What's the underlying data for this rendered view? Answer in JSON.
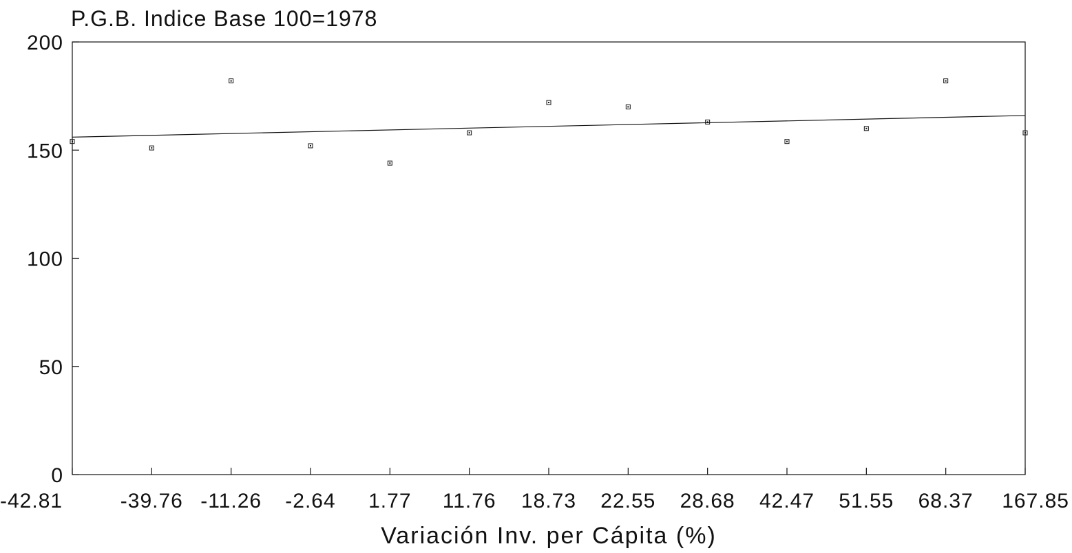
{
  "chart_data": {
    "type": "scatter",
    "title": "P.G.B. Indice Base 100=1978",
    "xlabel": "Variación Inv. per Cápita (%)",
    "ylabel": "",
    "ylim": [
      0,
      200
    ],
    "yticks": [
      "0",
      "50",
      "100",
      "150",
      "200"
    ],
    "categories": [
      "-42.81",
      "-39.76",
      "-11.26",
      "-2.64",
      "1.77",
      "11.76",
      "18.73",
      "22.55",
      "28.68",
      "42.47",
      "51.55",
      "68.37",
      "167.85"
    ],
    "values": [
      154,
      151,
      182,
      152,
      144,
      158,
      172,
      170,
      163,
      154,
      160,
      182,
      158
    ],
    "trendline": {
      "start": 156,
      "end": 166
    },
    "grid": false,
    "legend": "none",
    "marker": "square",
    "colors": {
      "ink": "#111111",
      "background": "#ffffff"
    }
  }
}
